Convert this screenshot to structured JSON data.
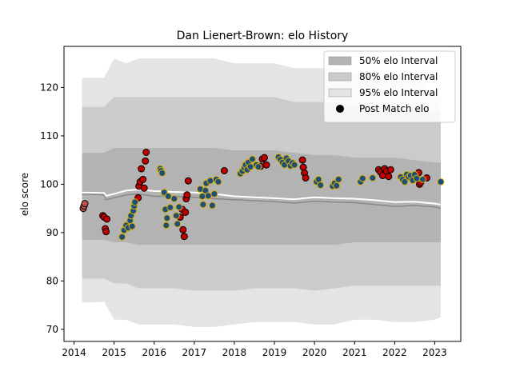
{
  "chart_data": {
    "type": "scatter",
    "title": "Dan Lienert-Brown: elo History",
    "xlabel": "",
    "ylabel": "elo score",
    "xlim": [
      2013.75,
      2023.65
    ],
    "ylim": [
      67.5,
      128.5
    ],
    "xticks": [
      2014,
      2015,
      2016,
      2017,
      2018,
      2019,
      2020,
      2021,
      2022,
      2023
    ],
    "yticks": [
      70,
      80,
      90,
      100,
      110,
      120
    ],
    "grid": false,
    "legend_position": "top-right",
    "colors": {
      "band_50": "#b3b3b3",
      "band_80": "#cbcbcb",
      "band_95": "#e4e4e4",
      "median_line": "#888888",
      "mean_line": "#ffffff",
      "win_fill": "#1f4e79",
      "win_edge": "#d8b000",
      "loss_fill": "#c00000",
      "loss_edge": "#000000",
      "first_fill": "#c0504d"
    },
    "legend": [
      {
        "label": "50% elo Interval",
        "kind": "band",
        "color": "#b3b3b3"
      },
      {
        "label": "80% elo Interval",
        "kind": "band",
        "color": "#cbcbcb"
      },
      {
        "label": "95% elo Interval",
        "kind": "band",
        "color": "#e4e4e4"
      },
      {
        "label": "Post Match elo",
        "kind": "marker",
        "color": "#000000"
      }
    ],
    "bands": {
      "x": [
        2014.2,
        2014.75,
        2015.0,
        2015.3,
        2015.6,
        2016.0,
        2016.5,
        2017.0,
        2017.5,
        2018.0,
        2018.5,
        2019.0,
        2019.5,
        2020.0,
        2020.5,
        2021.0,
        2021.5,
        2022.0,
        2022.5,
        2023.0,
        2023.15
      ],
      "p95_upper": [
        122,
        122,
        126,
        125,
        126,
        126,
        126,
        126,
        126,
        125,
        125,
        125,
        124,
        124,
        124,
        123,
        123,
        122,
        122,
        118,
        118
      ],
      "p95_lower": [
        75.5,
        75.7,
        72,
        72,
        71,
        71,
        71,
        70.5,
        70.5,
        71,
        71.5,
        71.5,
        71.5,
        71,
        71,
        72,
        72,
        71.5,
        71.5,
        72,
        72.5
      ],
      "p80_upper": [
        116,
        116,
        118,
        118,
        118,
        118,
        118,
        118,
        118,
        118,
        118,
        118,
        117,
        117,
        117,
        116,
        116,
        115.5,
        115.5,
        115,
        115
      ],
      "p80_lower": [
        80.5,
        80.5,
        79.5,
        79.5,
        78.5,
        78.5,
        78.5,
        78,
        78,
        78,
        78.5,
        78.5,
        78.5,
        78,
        78.5,
        79,
        79,
        79,
        79,
        79,
        79
      ],
      "p50_upper": [
        106.5,
        106.5,
        107.5,
        107.5,
        107.5,
        107.5,
        107.5,
        107.5,
        107.5,
        107,
        107,
        107,
        106.5,
        106,
        106,
        105.5,
        105.5,
        105.5,
        105,
        104.5,
        104.5
      ],
      "p50_lower": [
        88.5,
        88.5,
        88,
        88,
        87.5,
        87.5,
        87.5,
        87.5,
        87.5,
        87.5,
        87.5,
        87.5,
        87.5,
        87.5,
        87.5,
        88,
        88,
        88,
        88,
        88,
        88
      ]
    },
    "median_line": {
      "x": [
        2014.2,
        2014.75,
        2014.8,
        2015.0,
        2015.3,
        2015.6,
        2016.0,
        2016.5,
        2017.0,
        2017.5,
        2018.0,
        2018.5,
        2019.0,
        2019.5,
        2020.0,
        2020.5,
        2021.0,
        2021.5,
        2022.0,
        2022.5,
        2023.0,
        2023.15
      ],
      "y": [
        98,
        97.8,
        96.8,
        97.2,
        97.8,
        98.0,
        97.5,
        97.5,
        97.3,
        97.0,
        96.8,
        96.6,
        96.4,
        96.1,
        96.5,
        96.3,
        96.2,
        95.8,
        95.4,
        95.6,
        95.3,
        95.0
      ]
    },
    "mean_line": {
      "x": [
        2014.2,
        2014.75,
        2014.8,
        2015.0,
        2015.3,
        2015.6,
        2016.0,
        2016.5,
        2017.0,
        2017.5,
        2018.0,
        2018.5,
        2019.0,
        2019.5,
        2020.0,
        2020.5,
        2021.0,
        2021.5,
        2022.0,
        2022.5,
        2023.0,
        2023.15
      ],
      "y": [
        98.3,
        98.2,
        97.6,
        98.0,
        98.7,
        98.9,
        98.6,
        98.4,
        98.3,
        98.0,
        97.5,
        97.3,
        97.1,
        96.9,
        97.3,
        97.1,
        97.0,
        96.7,
        96.3,
        96.4,
        96.0,
        95.8
      ]
    },
    "points": {
      "first": [
        {
          "x": 2014.23,
          "y": 95.0
        },
        {
          "x": 2014.25,
          "y": 95.5
        },
        {
          "x": 2014.27,
          "y": 96.0
        }
      ],
      "won": [
        {
          "x": 2015.2,
          "y": 89.1
        },
        {
          "x": 2015.25,
          "y": 90.5
        },
        {
          "x": 2015.3,
          "y": 91.5
        },
        {
          "x": 2015.35,
          "y": 91.0
        },
        {
          "x": 2015.4,
          "y": 92.5
        },
        {
          "x": 2015.42,
          "y": 93.5
        },
        {
          "x": 2015.45,
          "y": 91.3
        },
        {
          "x": 2015.48,
          "y": 94.5
        },
        {
          "x": 2015.5,
          "y": 95.5
        },
        {
          "x": 2015.52,
          "y": 96.3
        },
        {
          "x": 2016.15,
          "y": 103.2
        },
        {
          "x": 2016.17,
          "y": 102.8
        },
        {
          "x": 2016.2,
          "y": 102.3
        },
        {
          "x": 2016.25,
          "y": 98.3
        },
        {
          "x": 2016.28,
          "y": 94.8
        },
        {
          "x": 2016.3,
          "y": 91.5
        },
        {
          "x": 2016.32,
          "y": 93.0
        },
        {
          "x": 2016.35,
          "y": 97.5
        },
        {
          "x": 2016.4,
          "y": 95.2
        },
        {
          "x": 2016.5,
          "y": 97.0
        },
        {
          "x": 2016.55,
          "y": 93.5
        },
        {
          "x": 2016.58,
          "y": 91.8
        },
        {
          "x": 2016.62,
          "y": 95.3
        },
        {
          "x": 2017.15,
          "y": 99.0
        },
        {
          "x": 2017.2,
          "y": 97.5
        },
        {
          "x": 2017.22,
          "y": 95.8
        },
        {
          "x": 2017.28,
          "y": 98.7
        },
        {
          "x": 2017.3,
          "y": 100.2
        },
        {
          "x": 2017.35,
          "y": 97.6
        },
        {
          "x": 2017.4,
          "y": 100.7
        },
        {
          "x": 2017.45,
          "y": 95.6
        },
        {
          "x": 2017.5,
          "y": 98.0
        },
        {
          "x": 2017.55,
          "y": 101.0
        },
        {
          "x": 2017.6,
          "y": 100.5
        },
        {
          "x": 2018.15,
          "y": 102.2
        },
        {
          "x": 2018.2,
          "y": 102.7
        },
        {
          "x": 2018.25,
          "y": 103.4
        },
        {
          "x": 2018.28,
          "y": 104.0
        },
        {
          "x": 2018.32,
          "y": 103.0
        },
        {
          "x": 2018.35,
          "y": 104.5
        },
        {
          "x": 2018.4,
          "y": 103.6
        },
        {
          "x": 2018.45,
          "y": 105.2
        },
        {
          "x": 2018.55,
          "y": 104.0
        },
        {
          "x": 2018.6,
          "y": 103.6
        },
        {
          "x": 2019.1,
          "y": 105.6
        },
        {
          "x": 2019.15,
          "y": 105.1
        },
        {
          "x": 2019.2,
          "y": 104.5
        },
        {
          "x": 2019.25,
          "y": 104.0
        },
        {
          "x": 2019.3,
          "y": 105.4
        },
        {
          "x": 2019.35,
          "y": 104.8
        },
        {
          "x": 2019.4,
          "y": 103.8
        },
        {
          "x": 2019.45,
          "y": 104.4
        },
        {
          "x": 2019.5,
          "y": 104.0
        },
        {
          "x": 2020.05,
          "y": 100.5
        },
        {
          "x": 2020.1,
          "y": 101.0
        },
        {
          "x": 2020.15,
          "y": 99.8
        },
        {
          "x": 2020.45,
          "y": 99.6
        },
        {
          "x": 2020.5,
          "y": 100.2
        },
        {
          "x": 2020.55,
          "y": 99.7
        },
        {
          "x": 2020.6,
          "y": 101.0
        },
        {
          "x": 2021.15,
          "y": 100.5
        },
        {
          "x": 2021.2,
          "y": 101.2
        },
        {
          "x": 2021.45,
          "y": 101.3
        },
        {
          "x": 2022.15,
          "y": 101.5
        },
        {
          "x": 2022.2,
          "y": 101.0
        },
        {
          "x": 2022.25,
          "y": 100.5
        },
        {
          "x": 2022.3,
          "y": 102.0
        },
        {
          "x": 2022.35,
          "y": 101.5
        },
        {
          "x": 2022.4,
          "y": 101.8
        },
        {
          "x": 2022.45,
          "y": 100.8
        },
        {
          "x": 2022.5,
          "y": 102.0
        },
        {
          "x": 2022.55,
          "y": 101.2
        },
        {
          "x": 2022.7,
          "y": 101.0
        },
        {
          "x": 2023.15,
          "y": 100.5
        }
      ],
      "lost": [
        {
          "x": 2014.72,
          "y": 93.5
        },
        {
          "x": 2014.75,
          "y": 93.2
        },
        {
          "x": 2014.78,
          "y": 90.8
        },
        {
          "x": 2014.8,
          "y": 90.2
        },
        {
          "x": 2014.82,
          "y": 92.8
        },
        {
          "x": 2015.6,
          "y": 97.2
        },
        {
          "x": 2015.62,
          "y": 99.6
        },
        {
          "x": 2015.65,
          "y": 100.5
        },
        {
          "x": 2015.68,
          "y": 103.2
        },
        {
          "x": 2015.72,
          "y": 101.0
        },
        {
          "x": 2015.75,
          "y": 99.2
        },
        {
          "x": 2015.78,
          "y": 104.8
        },
        {
          "x": 2015.8,
          "y": 106.6
        },
        {
          "x": 2016.65,
          "y": 93.2
        },
        {
          "x": 2016.7,
          "y": 94.8
        },
        {
          "x": 2016.72,
          "y": 90.6
        },
        {
          "x": 2016.75,
          "y": 89.2
        },
        {
          "x": 2016.78,
          "y": 94.2
        },
        {
          "x": 2016.8,
          "y": 97.0
        },
        {
          "x": 2016.82,
          "y": 97.8
        },
        {
          "x": 2016.85,
          "y": 100.7
        },
        {
          "x": 2017.75,
          "y": 102.8
        },
        {
          "x": 2018.65,
          "y": 103.7
        },
        {
          "x": 2018.7,
          "y": 105.2
        },
        {
          "x": 2018.75,
          "y": 105.5
        },
        {
          "x": 2018.8,
          "y": 104.0
        },
        {
          "x": 2019.7,
          "y": 105.0
        },
        {
          "x": 2019.72,
          "y": 103.5
        },
        {
          "x": 2019.75,
          "y": 102.3
        },
        {
          "x": 2019.78,
          "y": 101.3
        },
        {
          "x": 2021.6,
          "y": 103.0
        },
        {
          "x": 2021.65,
          "y": 102.5
        },
        {
          "x": 2021.7,
          "y": 101.8
        },
        {
          "x": 2021.75,
          "y": 103.2
        },
        {
          "x": 2021.8,
          "y": 102.7
        },
        {
          "x": 2021.85,
          "y": 101.6
        },
        {
          "x": 2021.9,
          "y": 103.0
        },
        {
          "x": 2022.6,
          "y": 102.4
        },
        {
          "x": 2022.62,
          "y": 100.0
        },
        {
          "x": 2022.65,
          "y": 100.4
        },
        {
          "x": 2022.8,
          "y": 101.3
        }
      ]
    }
  }
}
